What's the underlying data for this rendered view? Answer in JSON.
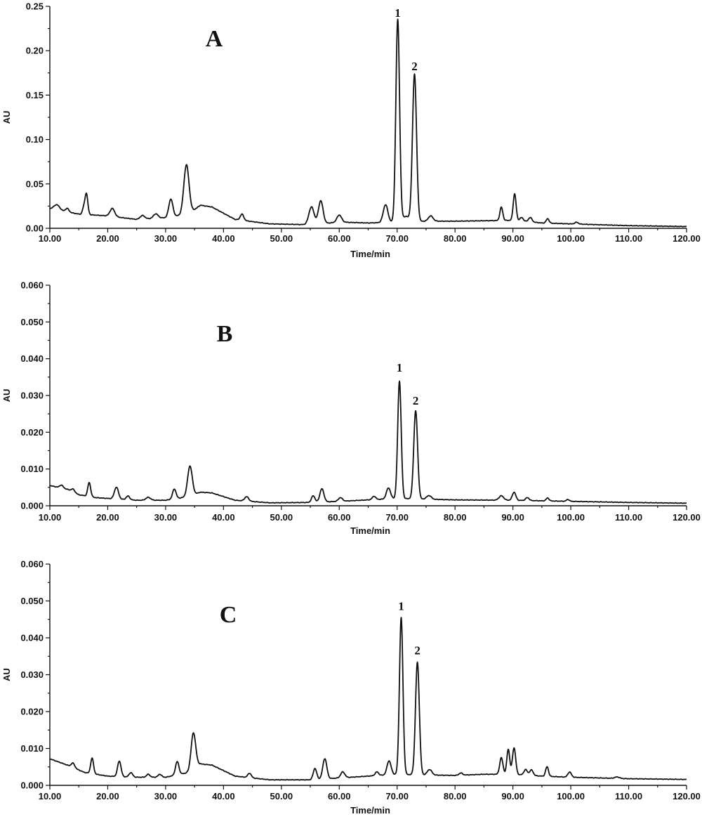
{
  "chart_data": [
    {
      "type": "line",
      "panel_label": "A",
      "xlabel": "Time/min",
      "ylabel": "AU",
      "xlim": [
        10,
        120
      ],
      "ylim": [
        0,
        0.25
      ],
      "xticks": [
        "10.00",
        "20.00",
        "30.00",
        "40.00",
        "50.00",
        "60.00",
        "70.00",
        "80.00",
        "90.00",
        "100.00",
        "110.00",
        "120.00"
      ],
      "yticks": [
        "0.00",
        "0.05",
        "0.10",
        "0.15",
        "0.20",
        "0.25"
      ],
      "grid": false,
      "baseline": [
        [
          10,
          0.022
        ],
        [
          15,
          0.016
        ],
        [
          20,
          0.014
        ],
        [
          25,
          0.01
        ],
        [
          30,
          0.012
        ],
        [
          34,
          0.016
        ],
        [
          36,
          0.026
        ],
        [
          38,
          0.024
        ],
        [
          42,
          0.01
        ],
        [
          48,
          0.005
        ],
        [
          55,
          0.004
        ],
        [
          60,
          0.007
        ],
        [
          65,
          0.006
        ],
        [
          70,
          0.007
        ],
        [
          75,
          0.008
        ],
        [
          80,
          0.008
        ],
        [
          90,
          0.009
        ],
        [
          95,
          0.006
        ],
        [
          100,
          0.005
        ],
        [
          110,
          0.003
        ],
        [
          120,
          0.002
        ]
      ],
      "peaks": [
        [
          11.2,
          0.006,
          0.5
        ],
        [
          13,
          0.004,
          0.3
        ],
        [
          15.8,
          0.006,
          0.2
        ],
        [
          16.3,
          0.024,
          0.25
        ],
        [
          20.8,
          0.009,
          0.4
        ],
        [
          26,
          0.004,
          0.4
        ],
        [
          28.3,
          0.005,
          0.4
        ],
        [
          30.9,
          0.02,
          0.35
        ],
        [
          33.6,
          0.056,
          0.45
        ],
        [
          43.2,
          0.007,
          0.3
        ],
        [
          55.2,
          0.02,
          0.45
        ],
        [
          56.8,
          0.026,
          0.4
        ],
        [
          60,
          0.008,
          0.4
        ],
        [
          68,
          0.02,
          0.4
        ],
        [
          70.1,
          0.228,
          0.32
        ],
        [
          71.5,
          0.006,
          0.6
        ],
        [
          73,
          0.166,
          0.35
        ],
        [
          75.8,
          0.006,
          0.4
        ],
        [
          88,
          0.015,
          0.25
        ],
        [
          90.3,
          0.03,
          0.25
        ],
        [
          91.5,
          0.004,
          0.3
        ],
        [
          93,
          0.005,
          0.3
        ],
        [
          96,
          0.005,
          0.25
        ],
        [
          101,
          0.002,
          0.3
        ]
      ],
      "annotations": [
        {
          "text": "1",
          "x": 70.1,
          "y": 0.238
        },
        {
          "text": "2",
          "x": 73.0,
          "y": 0.178
        }
      ]
    },
    {
      "type": "line",
      "panel_label": "B",
      "xlabel": "Time/min",
      "ylabel": "AU",
      "xlim": [
        10,
        120
      ],
      "ylim": [
        0,
        0.06
      ],
      "xticks": [
        "10.00",
        "20.00",
        "30.00",
        "40.00",
        "50.00",
        "60.00",
        "70.00",
        "80.00",
        "90.00",
        "100.00",
        "110.00",
        "120.00"
      ],
      "yticks": [
        "0.000",
        "0.010",
        "0.020",
        "0.030",
        "0.040",
        "0.050",
        "0.060"
      ],
      "grid": false,
      "baseline": [
        [
          10,
          0.0055
        ],
        [
          13,
          0.0045
        ],
        [
          15,
          0.003
        ],
        [
          18,
          0.0022
        ],
        [
          25,
          0.0015
        ],
        [
          30,
          0.0015
        ],
        [
          34,
          0.0025
        ],
        [
          36,
          0.0037
        ],
        [
          38,
          0.0035
        ],
        [
          42,
          0.0015
        ],
        [
          48,
          0.0008
        ],
        [
          55,
          0.0009
        ],
        [
          60,
          0.0012
        ],
        [
          65,
          0.0016
        ],
        [
          70,
          0.002
        ],
        [
          75,
          0.0018
        ],
        [
          80,
          0.0016
        ],
        [
          90,
          0.0015
        ],
        [
          100,
          0.0012
        ],
        [
          110,
          0.0009
        ],
        [
          120,
          0.0007
        ]
      ],
      "peaks": [
        [
          12,
          0.0008,
          0.3
        ],
        [
          14,
          0.0008,
          0.3
        ],
        [
          16.8,
          0.0038,
          0.25
        ],
        [
          21.5,
          0.0032,
          0.35
        ],
        [
          23.5,
          0.001,
          0.3
        ],
        [
          27,
          0.0008,
          0.4
        ],
        [
          31.5,
          0.0027,
          0.3
        ],
        [
          34.2,
          0.0082,
          0.4
        ],
        [
          44,
          0.0012,
          0.35
        ],
        [
          55.5,
          0.0018,
          0.3
        ],
        [
          57,
          0.0036,
          0.35
        ],
        [
          60.2,
          0.001,
          0.35
        ],
        [
          66,
          0.0009,
          0.3
        ],
        [
          68.5,
          0.003,
          0.35
        ],
        [
          70.4,
          0.032,
          0.3
        ],
        [
          73.2,
          0.024,
          0.33
        ],
        [
          75.5,
          0.001,
          0.4
        ],
        [
          88,
          0.0012,
          0.4
        ],
        [
          90.2,
          0.0022,
          0.3
        ],
        [
          92.5,
          0.0008,
          0.3
        ],
        [
          96,
          0.0008,
          0.25
        ],
        [
          99.5,
          0.0005,
          0.25
        ]
      ],
      "annotations": [
        {
          "text": "1",
          "x": 70.4,
          "y": 0.0365
        },
        {
          "text": "2",
          "x": 73.2,
          "y": 0.0275
        }
      ]
    },
    {
      "type": "line",
      "panel_label": "C",
      "xlabel": "Time/min",
      "ylabel": "AU",
      "xlim": [
        10,
        120
      ],
      "ylim": [
        0,
        0.06
      ],
      "xticks": [
        "10.00",
        "20.00",
        "30.00",
        "40.00",
        "50.00",
        "60.00",
        "70.00",
        "80.00",
        "90.00",
        "100.00",
        "110.00",
        "120.00"
      ],
      "yticks": [
        "0.000",
        "0.010",
        "0.020",
        "0.030",
        "0.040",
        "0.050",
        "0.060"
      ],
      "grid": false,
      "baseline": [
        [
          10,
          0.0072
        ],
        [
          13,
          0.0055
        ],
        [
          16,
          0.0035
        ],
        [
          20,
          0.0025
        ],
        [
          25,
          0.0022
        ],
        [
          30,
          0.0022
        ],
        [
          34,
          0.0035
        ],
        [
          36,
          0.0058
        ],
        [
          38,
          0.0055
        ],
        [
          42,
          0.0025
        ],
        [
          48,
          0.0015
        ],
        [
          55,
          0.0015
        ],
        [
          60,
          0.002
        ],
        [
          65,
          0.0025
        ],
        [
          70,
          0.003
        ],
        [
          75,
          0.0028
        ],
        [
          80,
          0.0027
        ],
        [
          85,
          0.003
        ],
        [
          90,
          0.003
        ],
        [
          95,
          0.0025
        ],
        [
          100,
          0.0022
        ],
        [
          110,
          0.0018
        ],
        [
          120,
          0.0016
        ]
      ],
      "peaks": [
        [
          14,
          0.0012,
          0.3
        ],
        [
          17.3,
          0.0042,
          0.25
        ],
        [
          22,
          0.0042,
          0.3
        ],
        [
          24,
          0.0012,
          0.3
        ],
        [
          27,
          0.0008,
          0.3
        ],
        [
          29,
          0.0008,
          0.3
        ],
        [
          32,
          0.0036,
          0.3
        ],
        [
          34.8,
          0.0098,
          0.4
        ],
        [
          44.5,
          0.0012,
          0.3
        ],
        [
          55.8,
          0.003,
          0.3
        ],
        [
          57.5,
          0.0055,
          0.35
        ],
        [
          60.6,
          0.0016,
          0.35
        ],
        [
          66.5,
          0.001,
          0.3
        ],
        [
          68.6,
          0.0038,
          0.35
        ],
        [
          70.7,
          0.0425,
          0.3
        ],
        [
          73.5,
          0.0305,
          0.33
        ],
        [
          75.6,
          0.0015,
          0.4
        ],
        [
          81,
          0.0006,
          0.3
        ],
        [
          88,
          0.0045,
          0.28
        ],
        [
          89.2,
          0.0068,
          0.25
        ],
        [
          90.2,
          0.0072,
          0.28
        ],
        [
          92.2,
          0.0015,
          0.3
        ],
        [
          93.2,
          0.0015,
          0.3
        ],
        [
          95.9,
          0.0026,
          0.25
        ],
        [
          99.8,
          0.0014,
          0.3
        ],
        [
          108,
          0.0004,
          0.4
        ]
      ],
      "annotations": [
        {
          "text": "1",
          "x": 70.7,
          "y": 0.0475
        },
        {
          "text": "2",
          "x": 73.5,
          "y": 0.0355
        }
      ]
    }
  ]
}
